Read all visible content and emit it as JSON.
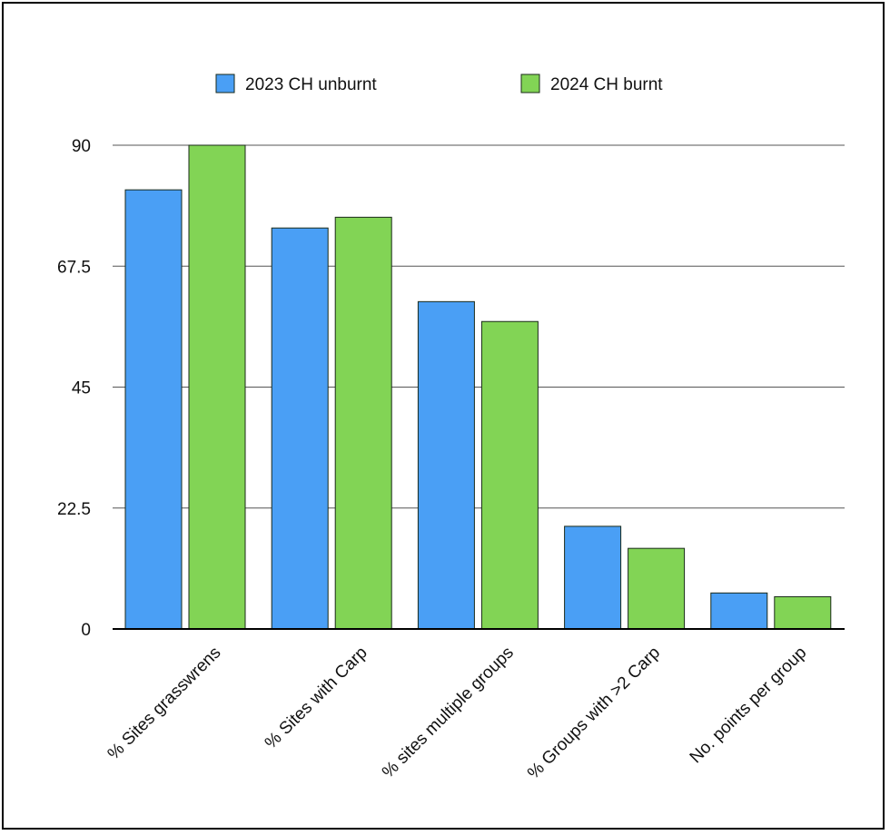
{
  "chart_data": {
    "type": "bar",
    "title": "",
    "xlabel": "",
    "ylabel": "",
    "ylim": [
      0,
      90
    ],
    "yticks": [
      "0",
      "22.5",
      "45",
      "67.5",
      "90"
    ],
    "categories": [
      "% Sites grasswrens",
      "% Sites with Carp",
      "% sites multiple groups",
      "% Groups with >2 Carp",
      "No. points per group"
    ],
    "series": [
      {
        "name": "2023 CH unburnt",
        "color": "#4a9ff5",
        "values": [
          81.7,
          74.6,
          60.9,
          19.1,
          6.7
        ]
      },
      {
        "name": "2024 CH burnt",
        "color": "#82d455",
        "values": [
          90.0,
          76.6,
          57.2,
          15.0,
          6.0
        ]
      }
    ],
    "grid": true,
    "legend": "top"
  }
}
